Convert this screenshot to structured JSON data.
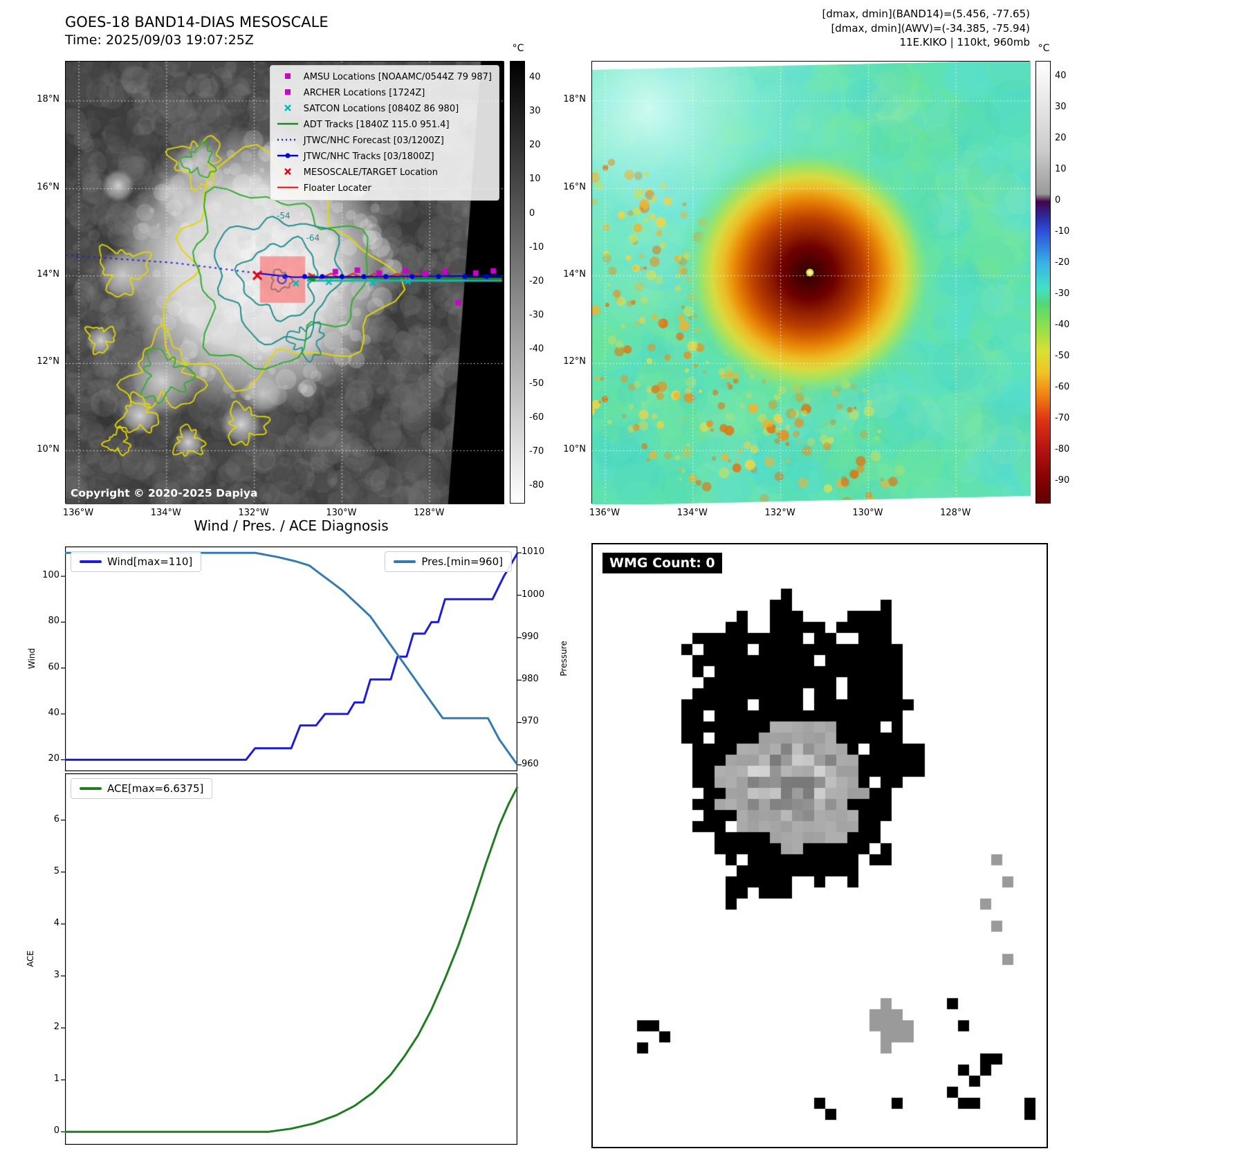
{
  "colors": {
    "wind_line": "#1c1ce0",
    "pressure_line": "#3579b1",
    "ace_line": "#1e7d1e",
    "amsu_marker": "#cc00cc",
    "satcon_marker": "#00bcbc",
    "adt_track": "#1a8a1a",
    "jtwc_track": "#0000dd",
    "target_marker": "#e8000b",
    "floater_line": "#e03030"
  },
  "top_left": {
    "title": "GOES-18 BAND14-DIAS MESOSCALE",
    "subtitle": "Time: 2025/09/03 19:07:25Z",
    "copyright": "Copyright © 2020-2025 Dapiya",
    "legend_items": [
      {
        "label": "AMSU Locations [NOAAMC/0544Z 79 987]",
        "marker": "square",
        "color": "#cc00cc"
      },
      {
        "label": "ARCHER Locations [1724Z]",
        "marker": "square",
        "color": "#cc00cc"
      },
      {
        "label": "SATCON Locations [0840Z 86 980]",
        "marker": "x",
        "color": "#00bcbc"
      },
      {
        "label": "ADT Tracks [1840Z 115.0 951.4]",
        "marker": "line",
        "color": "#1a8a1a"
      },
      {
        "label": "JTWC/NHC Forecast [03/1200Z]",
        "marker": "dotted",
        "color": "#2222cc"
      },
      {
        "label": "JTWC/NHC Tracks [03/1800Z]",
        "marker": "line-dot",
        "color": "#0000dd"
      },
      {
        "label": "MESOSCALE/TARGET Location",
        "marker": "x",
        "color": "#e8000b"
      },
      {
        "label": "Floater Locater",
        "marker": "line",
        "color": "#e03030"
      }
    ],
    "x_tick_labels": [
      "136°W",
      "134°W",
      "132°W",
      "130°W",
      "128°W"
    ],
    "y_tick_labels": [
      "18°N",
      "16°N",
      "14°N",
      "12°N",
      "10°N"
    ],
    "colorbar_unit": "°C",
    "colorbar_ticks": [
      "40",
      "30",
      "20",
      "10",
      "0",
      "-10",
      "-20",
      "-30",
      "-40",
      "-50",
      "-60",
      "-70",
      "-80"
    ],
    "contour_labels": [
      "-54",
      "-64"
    ]
  },
  "top_right": {
    "header_line1": "[dmax, dmin](BAND14)=(5.456, -77.65)",
    "header_line2": "[dmax, dmin](AWV)=(-34.385, -75.94)",
    "header_line3": "11E.KIKO | 110kt, 960mb",
    "x_tick_labels": [
      "136°W",
      "134°W",
      "132°W",
      "130°W",
      "128°W"
    ],
    "y_tick_labels": [
      "18°N",
      "16°N",
      "14°N",
      "12°N",
      "10°N"
    ],
    "colorbar_unit": "°C",
    "colorbar_ticks": [
      "40",
      "30",
      "20",
      "10",
      "0",
      "-10",
      "-20",
      "-30",
      "-40",
      "-50",
      "-60",
      "-70",
      "-80",
      "-90"
    ]
  },
  "bottom_left": {
    "title": "Wind / Pres. / ACE Diagnosis",
    "wind_legend": "Wind[max=110]",
    "pres_legend": "Pres.[min=960]",
    "ace_legend": "ACE[max=6.6375]",
    "wind_axis_label": "Wind",
    "pressure_axis_label": "Pressure",
    "ace_axis_label": "ACE"
  },
  "bottom_right": {
    "label": "WMG Count: 0"
  },
  "chart_data": [
    {
      "type": "line",
      "title": "Wind / Pres. / ACE Diagnosis",
      "x_axis": "time (unlabeled, normalized 0-1)",
      "ylabel_left": "Wind",
      "ylim_left": [
        15,
        113
      ],
      "yticks_left": [
        20,
        40,
        60,
        80,
        100
      ],
      "ylabel_right": "Pressure",
      "ylim_right": [
        958.5,
        1011.5
      ],
      "yticks_right": [
        960,
        970,
        980,
        990,
        1000,
        1010
      ],
      "series": [
        {
          "name": "Wind[max=110]",
          "axis": "left",
          "color": "#1c1ce0",
          "points": [
            [
              0,
              20
            ],
            [
              0.4,
              20
            ],
            [
              0.42,
              25
            ],
            [
              0.5,
              25
            ],
            [
              0.52,
              35
            ],
            [
              0.555,
              35
            ],
            [
              0.575,
              40
            ],
            [
              0.625,
              40
            ],
            [
              0.64,
              45
            ],
            [
              0.66,
              45
            ],
            [
              0.675,
              55
            ],
            [
              0.72,
              55
            ],
            [
              0.735,
              65
            ],
            [
              0.755,
              65
            ],
            [
              0.77,
              75
            ],
            [
              0.795,
              75
            ],
            [
              0.81,
              80
            ],
            [
              0.825,
              80
            ],
            [
              0.84,
              90
            ],
            [
              0.945,
              90
            ],
            [
              0.97,
              100
            ],
            [
              1,
              110
            ]
          ]
        },
        {
          "name": "Pres.[min=960]",
          "axis": "right",
          "color": "#3579b1",
          "points": [
            [
              0,
              1010
            ],
            [
              0.42,
              1010
            ],
            [
              0.47,
              1009
            ],
            [
              0.51,
              1008
            ],
            [
              0.54,
              1007
            ],
            [
              0.565,
              1005
            ],
            [
              0.59,
              1003
            ],
            [
              0.615,
              1001
            ],
            [
              0.635,
              999
            ],
            [
              0.655,
              997
            ],
            [
              0.675,
              995
            ],
            [
              0.695,
              992
            ],
            [
              0.715,
              989
            ],
            [
              0.735,
              986
            ],
            [
              0.755,
              983
            ],
            [
              0.775,
              980
            ],
            [
              0.795,
              977
            ],
            [
              0.815,
              974
            ],
            [
              0.835,
              971
            ],
            [
              0.935,
              971
            ],
            [
              0.96,
              966
            ],
            [
              1,
              960
            ]
          ]
        }
      ]
    },
    {
      "type": "line",
      "ylabel": "ACE",
      "ylim": [
        -0.25,
        6.9
      ],
      "yticks": [
        0,
        1,
        2,
        3,
        4,
        5,
        6
      ],
      "series": [
        {
          "name": "ACE[max=6.6375]",
          "color": "#1e7d1e",
          "points": [
            [
              0,
              0
            ],
            [
              0.45,
              0
            ],
            [
              0.5,
              0.06
            ],
            [
              0.55,
              0.16
            ],
            [
              0.6,
              0.32
            ],
            [
              0.64,
              0.5
            ],
            [
              0.68,
              0.75
            ],
            [
              0.72,
              1.1
            ],
            [
              0.75,
              1.45
            ],
            [
              0.78,
              1.85
            ],
            [
              0.81,
              2.35
            ],
            [
              0.84,
              2.95
            ],
            [
              0.87,
              3.6
            ],
            [
              0.9,
              4.35
            ],
            [
              0.93,
              5.15
            ],
            [
              0.96,
              5.9
            ],
            [
              0.98,
              6.3
            ],
            [
              1,
              6.6375
            ]
          ]
        }
      ]
    }
  ]
}
